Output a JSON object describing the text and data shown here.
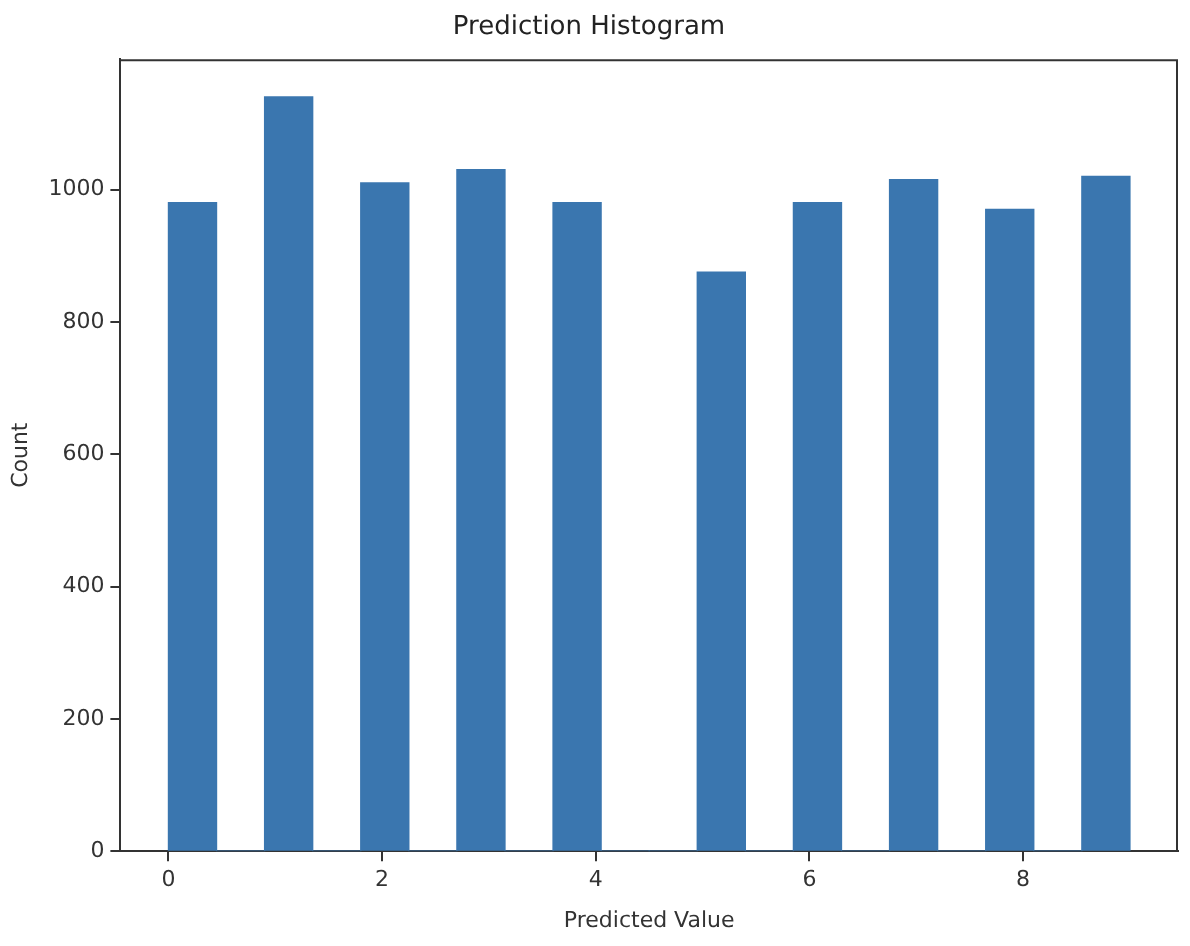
{
  "chart_data": {
    "type": "histogram",
    "title": "Prediction Histogram",
    "xlabel": "Predicted Value",
    "ylabel": "Count",
    "bins": [
      0,
      0.45,
      0.9,
      1.35,
      1.8,
      2.25,
      2.7,
      3.15,
      3.6,
      4.05,
      4.5,
      4.95,
      5.4,
      5.85,
      6.3,
      6.75,
      7.2,
      7.65,
      8.1,
      8.55,
      9
    ],
    "values": [
      980,
      0,
      1140,
      0,
      1010,
      0,
      1030,
      0,
      980,
      0,
      0,
      875,
      0,
      980,
      0,
      1015,
      0,
      970,
      0,
      1020
    ],
    "color": "#3a76af",
    "xlim": [
      -0.45,
      9.45
    ],
    "xticks": [
      0,
      2,
      4,
      6,
      8
    ],
    "ylim": [
      0,
      1197
    ],
    "yticks": [
      0,
      200,
      400,
      600,
      800,
      1000
    ],
    "grid": false,
    "legend": false
  }
}
